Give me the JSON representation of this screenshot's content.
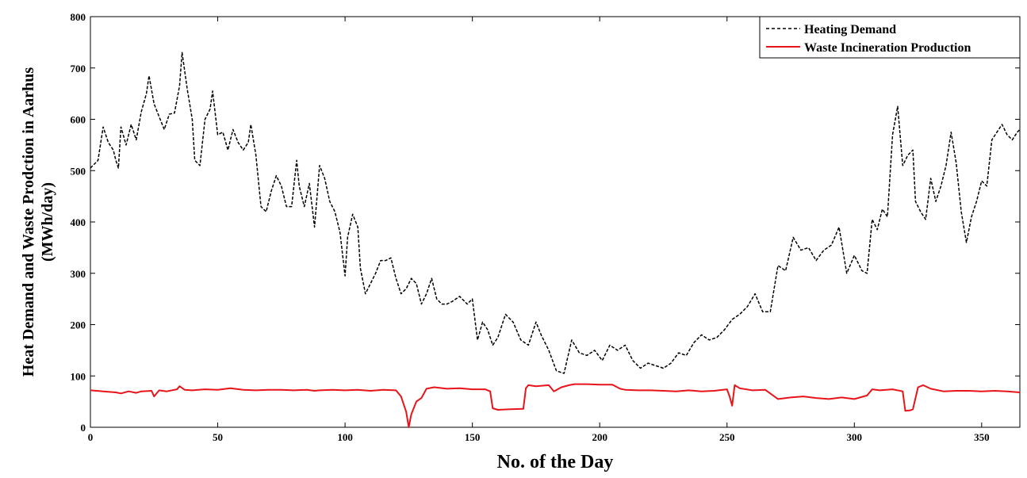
{
  "chart_data": {
    "type": "line",
    "title": "",
    "xlabel": "No. of the Day",
    "ylabel_line1": "Heat Demand and Waste Prodction in Aarhus",
    "ylabel_line2": "(MWh/day)",
    "xlim": [
      0,
      365
    ],
    "ylim": [
      0,
      800
    ],
    "xticks": [
      0,
      50,
      100,
      150,
      200,
      250,
      300,
      350
    ],
    "yticks": [
      0,
      100,
      200,
      300,
      400,
      500,
      600,
      700,
      800
    ],
    "grid": false,
    "legend_position": "top-right",
    "series": [
      {
        "name": "Heating Demand",
        "color": "#000000",
        "style": "dashed",
        "x": [
          0,
          3,
          5,
          7,
          9,
          10,
          11,
          12,
          14,
          16,
          18,
          20,
          22,
          23,
          25,
          27,
          29,
          31,
          33,
          35,
          36,
          38,
          40,
          41,
          43,
          45,
          47,
          48,
          50,
          52,
          54,
          56,
          58,
          60,
          62,
          63,
          65,
          67,
          69,
          71,
          73,
          75,
          77,
          79,
          81,
          82,
          84,
          86,
          88,
          90,
          92,
          94,
          96,
          98,
          100,
          101,
          103,
          105,
          106,
          108,
          110,
          112,
          114,
          116,
          118,
          120,
          122,
          124,
          126,
          128,
          130,
          132,
          134,
          136,
          138,
          140,
          142,
          145,
          148,
          150,
          152,
          154,
          156,
          158,
          160,
          163,
          166,
          169,
          172,
          175,
          177,
          180,
          183,
          186,
          189,
          192,
          195,
          198,
          201,
          204,
          207,
          210,
          213,
          216,
          219,
          222,
          225,
          228,
          231,
          234,
          237,
          240,
          243,
          246,
          249,
          252,
          255,
          258,
          261,
          264,
          267,
          270,
          273,
          276,
          279,
          282,
          285,
          288,
          291,
          294,
          297,
          300,
          303,
          305,
          307,
          309,
          311,
          313,
          315,
          317,
          319,
          321,
          323,
          324,
          326,
          328,
          330,
          332,
          334,
          336,
          338,
          340,
          342,
          344,
          346,
          348,
          350,
          352,
          354,
          356,
          358,
          360,
          362,
          364,
          365
        ],
        "y": [
          505,
          520,
          585,
          555,
          540,
          520,
          505,
          585,
          550,
          590,
          560,
          615,
          650,
          685,
          630,
          605,
          580,
          610,
          612,
          665,
          730,
          660,
          600,
          520,
          510,
          600,
          620,
          655,
          570,
          575,
          540,
          580,
          555,
          540,
          555,
          590,
          530,
          430,
          420,
          460,
          490,
          470,
          430,
          430,
          520,
          470,
          430,
          475,
          390,
          510,
          485,
          440,
          420,
          380,
          295,
          370,
          415,
          390,
          310,
          260,
          280,
          300,
          325,
          325,
          330,
          290,
          260,
          270,
          290,
          280,
          240,
          260,
          290,
          250,
          240,
          240,
          245,
          255,
          240,
          250,
          170,
          205,
          190,
          160,
          175,
          220,
          205,
          170,
          160,
          205,
          180,
          150,
          110,
          105,
          170,
          145,
          140,
          150,
          130,
          160,
          150,
          160,
          130,
          115,
          125,
          120,
          115,
          125,
          145,
          140,
          165,
          180,
          170,
          175,
          190,
          210,
          220,
          235,
          260,
          225,
          225,
          315,
          305,
          370,
          345,
          350,
          325,
          345,
          355,
          390,
          300,
          335,
          305,
          300,
          405,
          385,
          425,
          410,
          570,
          625,
          510,
          530,
          540,
          440,
          420,
          405,
          485,
          440,
          470,
          510,
          575,
          515,
          420,
          360,
          410,
          440,
          480,
          470,
          560,
          575,
          590,
          570,
          560,
          575,
          580
        ]
      },
      {
        "name": "Waste Incineration Production",
        "color": "#e8141a",
        "style": "solid",
        "x": [
          0,
          5,
          10,
          12,
          15,
          18,
          20,
          24,
          25,
          27,
          30,
          34,
          35,
          37,
          40,
          45,
          50,
          55,
          60,
          65,
          70,
          75,
          80,
          85,
          88,
          90,
          95,
          100,
          105,
          110,
          115,
          120,
          122,
          124,
          125,
          126,
          128,
          130,
          132,
          135,
          140,
          145,
          150,
          155,
          157,
          158,
          160,
          165,
          170,
          171,
          172,
          175,
          180,
          182,
          185,
          188,
          190,
          195,
          200,
          205,
          208,
          210,
          215,
          220,
          225,
          230,
          235,
          240,
          245,
          250,
          251,
          252,
          253,
          255,
          260,
          265,
          270,
          275,
          280,
          285,
          290,
          295,
          300,
          305,
          307,
          310,
          315,
          319,
          320,
          322,
          323,
          325,
          327,
          330,
          335,
          340,
          345,
          350,
          355,
          360,
          365
        ],
        "y": [
          72,
          70,
          68,
          66,
          70,
          67,
          70,
          71,
          60,
          72,
          70,
          74,
          80,
          73,
          72,
          74,
          73,
          76,
          73,
          72,
          73,
          73,
          72,
          73,
          71,
          72,
          73,
          72,
          73,
          71,
          73,
          72,
          60,
          30,
          0,
          25,
          50,
          57,
          75,
          78,
          75,
          76,
          74,
          74,
          70,
          37,
          34,
          35,
          36,
          76,
          82,
          80,
          82,
          70,
          78,
          82,
          84,
          84,
          83,
          83,
          75,
          73,
          72,
          72,
          71,
          70,
          72,
          70,
          71,
          74,
          60,
          42,
          82,
          76,
          72,
          73,
          55,
          58,
          60,
          57,
          55,
          58,
          55,
          62,
          74,
          72,
          74,
          70,
          32,
          33,
          35,
          78,
          82,
          75,
          70,
          71,
          71,
          70,
          71,
          70,
          68
        ]
      }
    ]
  }
}
